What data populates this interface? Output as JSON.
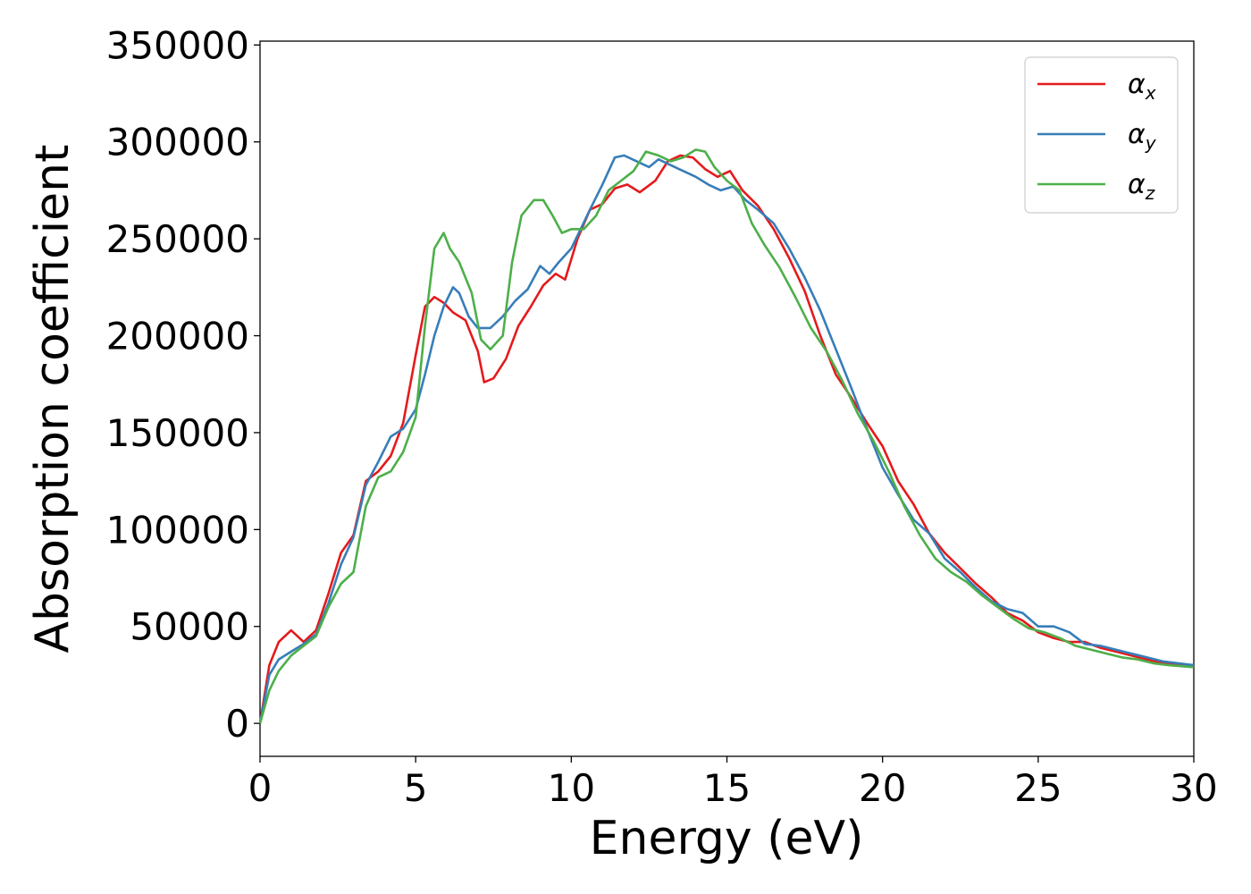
{
  "chart_data": {
    "type": "line",
    "xlabel": "Energy (eV)",
    "ylabel": "Absorption coefficient",
    "xlim": [
      0,
      30
    ],
    "ylim": [
      -17000,
      352000
    ],
    "xticks": [
      0,
      5,
      10,
      15,
      20,
      25,
      30
    ],
    "yticks": [
      0,
      50000,
      100000,
      150000,
      200000,
      250000,
      300000,
      350000
    ],
    "grid": false,
    "legend": "top-right",
    "series": [
      {
        "name": "αx",
        "legend_base": "α",
        "legend_sub": "x",
        "color": "#e41a1c",
        "x": [
          0,
          0.3,
          0.6,
          1.0,
          1.4,
          1.8,
          2.2,
          2.6,
          3.0,
          3.4,
          3.8,
          4.2,
          4.6,
          5.0,
          5.3,
          5.6,
          5.9,
          6.2,
          6.6,
          7.0,
          7.2,
          7.5,
          7.9,
          8.3,
          8.7,
          9.1,
          9.5,
          9.8,
          10.2,
          10.6,
          11.0,
          11.4,
          11.8,
          12.2,
          12.7,
          13.1,
          13.5,
          13.9,
          14.3,
          14.7,
          15.1,
          15.5,
          16.0,
          16.5,
          17.0,
          17.5,
          18.0,
          18.5,
          19.0,
          19.5,
          20.0,
          20.5,
          21.0,
          21.5,
          22.0,
          22.5,
          23.0,
          23.5,
          24.0,
          24.5,
          25.0,
          25.5,
          26.0,
          26.5,
          27.0,
          27.5,
          28.0,
          28.5,
          29.0,
          29.5,
          30.0
        ],
        "y": [
          0,
          30000,
          42000,
          48000,
          42000,
          48000,
          67000,
          88000,
          97000,
          125000,
          130000,
          138000,
          155000,
          190000,
          215000,
          220000,
          217000,
          212000,
          208000,
          192000,
          176000,
          178000,
          188000,
          205000,
          215000,
          226000,
          232000,
          229000,
          250000,
          265000,
          268000,
          276000,
          278000,
          274000,
          280000,
          290000,
          293000,
          292000,
          286000,
          282000,
          285000,
          275000,
          267000,
          255000,
          240000,
          223000,
          200000,
          180000,
          168000,
          155000,
          143000,
          125000,
          113000,
          98000,
          88000,
          80000,
          72000,
          65000,
          57000,
          53000,
          47000,
          44000,
          42000,
          42000,
          39000,
          37000,
          35000,
          33000,
          31000,
          30500,
          30000
        ]
      },
      {
        "name": "αy",
        "legend_base": "α",
        "legend_sub": "y",
        "color": "#377eb8",
        "x": [
          0,
          0.3,
          0.6,
          1.0,
          1.4,
          1.8,
          2.2,
          2.6,
          3.0,
          3.4,
          3.8,
          4.2,
          4.6,
          5.0,
          5.3,
          5.6,
          5.9,
          6.2,
          6.4,
          6.7,
          7.0,
          7.4,
          7.8,
          8.2,
          8.6,
          9.0,
          9.3,
          9.6,
          10.0,
          10.3,
          10.6,
          11.0,
          11.4,
          11.7,
          12.1,
          12.5,
          12.8,
          13.2,
          13.6,
          14.0,
          14.4,
          14.8,
          15.2,
          15.6,
          16.0,
          16.5,
          17.0,
          17.5,
          18.0,
          18.5,
          19.0,
          19.5,
          20.0,
          20.5,
          21.0,
          21.5,
          22.0,
          22.5,
          23.0,
          23.5,
          24.0,
          24.5,
          25.0,
          25.5,
          26.0,
          26.5,
          27.0,
          27.5,
          28.0,
          28.5,
          29.0,
          29.5,
          30.0
        ],
        "y": [
          0,
          25000,
          33000,
          37000,
          41000,
          46000,
          62000,
          82000,
          96000,
          123000,
          135000,
          148000,
          152000,
          162000,
          180000,
          200000,
          215000,
          225000,
          222000,
          210000,
          204000,
          204000,
          210000,
          218000,
          224000,
          236000,
          232000,
          238000,
          245000,
          255000,
          265000,
          278000,
          292000,
          293000,
          290000,
          287000,
          291000,
          288000,
          285000,
          282000,
          278000,
          275000,
          277000,
          270000,
          265000,
          258000,
          245000,
          230000,
          213000,
          193000,
          173000,
          152000,
          132000,
          118000,
          105000,
          98000,
          85000,
          78000,
          70000,
          63000,
          59000,
          57000,
          50000,
          50000,
          47000,
          41000,
          40000,
          38000,
          36000,
          34000,
          32000,
          31000,
          30000
        ]
      },
      {
        "name": "αz",
        "legend_base": "α",
        "legend_sub": "z",
        "color": "#4daf4a",
        "x": [
          0,
          0.3,
          0.6,
          1.0,
          1.4,
          1.8,
          2.2,
          2.6,
          3.0,
          3.4,
          3.8,
          4.2,
          4.6,
          5.0,
          5.3,
          5.6,
          5.9,
          6.1,
          6.4,
          6.8,
          7.1,
          7.4,
          7.8,
          8.1,
          8.4,
          8.8,
          9.1,
          9.4,
          9.7,
          10.0,
          10.4,
          10.8,
          11.2,
          11.6,
          12.0,
          12.4,
          12.8,
          13.2,
          13.6,
          14.0,
          14.3,
          14.6,
          15.0,
          15.4,
          15.8,
          16.2,
          16.7,
          17.2,
          17.7,
          18.2,
          18.7,
          19.2,
          19.7,
          20.2,
          20.7,
          21.2,
          21.7,
          22.2,
          22.7,
          23.2,
          23.7,
          24.2,
          24.7,
          25.2,
          25.7,
          26.2,
          26.7,
          27.2,
          27.7,
          28.2,
          28.7,
          29.2,
          30.0
        ],
        "y": [
          0,
          17000,
          27000,
          35000,
          40000,
          45000,
          60000,
          72000,
          78000,
          112000,
          127000,
          130000,
          140000,
          158000,
          205000,
          245000,
          253000,
          245000,
          238000,
          222000,
          198000,
          193000,
          200000,
          238000,
          262000,
          270000,
          270000,
          262000,
          253000,
          255000,
          255000,
          262000,
          275000,
          280000,
          285000,
          295000,
          293000,
          290000,
          292000,
          296000,
          295000,
          287000,
          280000,
          275000,
          258000,
          247000,
          235000,
          220000,
          204000,
          192000,
          177000,
          160000,
          146000,
          130000,
          112000,
          97000,
          85000,
          78000,
          73000,
          66000,
          60000,
          54000,
          49000,
          47000,
          44000,
          40000,
          38000,
          36000,
          34000,
          33000,
          31000,
          30000,
          29000
        ]
      }
    ]
  }
}
